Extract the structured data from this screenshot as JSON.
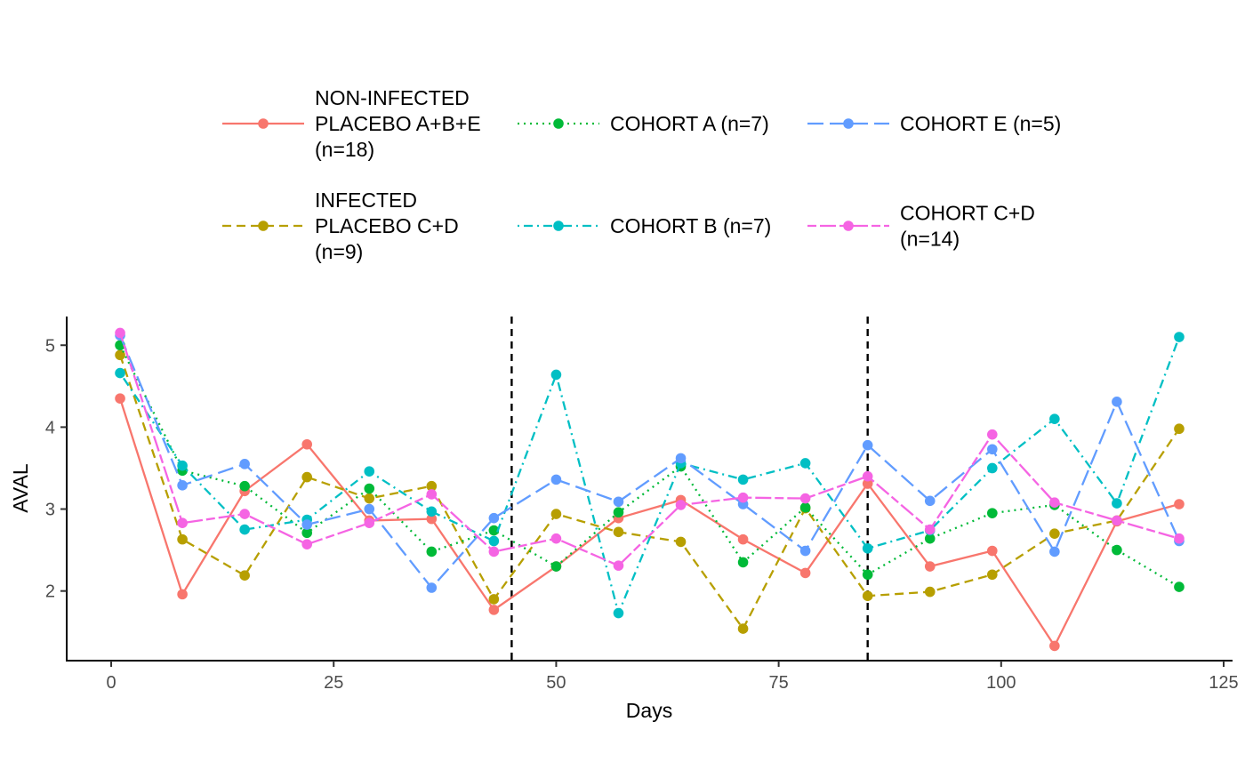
{
  "chart_data": {
    "type": "line",
    "title": "",
    "xlabel": "Days",
    "ylabel": "AVAL",
    "xlim": [
      -5,
      126
    ],
    "ylim": [
      1.15,
      5.35
    ],
    "xticks": [
      0,
      25,
      50,
      75,
      100,
      125
    ],
    "xtick_labels": [
      "0",
      "25",
      "50",
      "75",
      "100",
      "125"
    ],
    "yticks": [
      2,
      3,
      4,
      5
    ],
    "ytick_labels": [
      "2",
      "3",
      "4",
      "5"
    ],
    "vlines": [
      45,
      85
    ],
    "grid": false,
    "legend_position": "top",
    "x": [
      1,
      8,
      15,
      22,
      29,
      36,
      43,
      50,
      57,
      64,
      71,
      78,
      85,
      92,
      99,
      106,
      113,
      120
    ],
    "series": [
      {
        "name": "NON-INFECTED PLACEBO A+B+E (n=18)",
        "legend_lines": [
          "NON-INFECTED",
          "PLACEBO A+B+E",
          "(n=18)"
        ],
        "color": "#F8766D",
        "dash": "solid",
        "values": [
          4.35,
          1.96,
          3.22,
          3.79,
          2.86,
          2.88,
          1.77,
          2.3,
          2.89,
          3.11,
          2.63,
          2.22,
          3.31,
          2.3,
          2.49,
          1.33,
          2.85,
          3.06
        ]
      },
      {
        "name": "INFECTED PLACEBO C+D (n=9)",
        "legend_lines": [
          "INFECTED",
          "PLACEBO C+D",
          "(n=9)"
        ],
        "color": "#B79F00",
        "dash": "dashed",
        "values": [
          4.88,
          2.63,
          2.19,
          3.39,
          3.13,
          3.28,
          1.9,
          2.94,
          2.72,
          2.6,
          1.54,
          3.01,
          1.94,
          1.99,
          2.2,
          2.7,
          2.86,
          3.98
        ]
      },
      {
        "name": "COHORT A (n=7)",
        "legend_lines": [
          "COHORT A (n=7)"
        ],
        "color": "#00BA38",
        "dash": "dotted",
        "values": [
          5.0,
          3.47,
          3.28,
          2.71,
          3.25,
          2.48,
          2.74,
          2.3,
          2.96,
          3.52,
          2.35,
          3.02,
          2.2,
          2.64,
          2.95,
          3.05,
          2.5,
          2.05
        ]
      },
      {
        "name": "COHORT B (n=7)",
        "legend_lines": [
          "COHORT B (n=7)"
        ],
        "color": "#00BFC4",
        "dash": "dotdash",
        "values": [
          4.66,
          3.53,
          2.75,
          2.87,
          3.46,
          2.97,
          2.61,
          4.64,
          1.73,
          3.56,
          3.36,
          3.56,
          2.52,
          2.74,
          3.5,
          4.1,
          3.07,
          5.1
        ]
      },
      {
        "name": "COHORT E (n=5)",
        "legend_lines": [
          "COHORT E (n=5)"
        ],
        "color": "#619CFF",
        "dash": "longdash",
        "values": [
          5.12,
          3.29,
          3.55,
          2.81,
          3.0,
          2.04,
          2.89,
          3.36,
          3.09,
          3.62,
          3.06,
          2.49,
          3.78,
          3.1,
          3.73,
          2.48,
          4.31,
          2.61
        ]
      },
      {
        "name": "COHORT C+D (n=14)",
        "legend_lines": [
          "COHORT C+D",
          "(n=14)"
        ],
        "color": "#F564E3",
        "dash": "twodash",
        "values": [
          5.15,
          2.83,
          2.94,
          2.57,
          2.83,
          3.18,
          2.48,
          2.64,
          2.31,
          3.05,
          3.14,
          3.13,
          3.4,
          2.75,
          3.91,
          3.08,
          2.86,
          2.64
        ]
      }
    ]
  }
}
